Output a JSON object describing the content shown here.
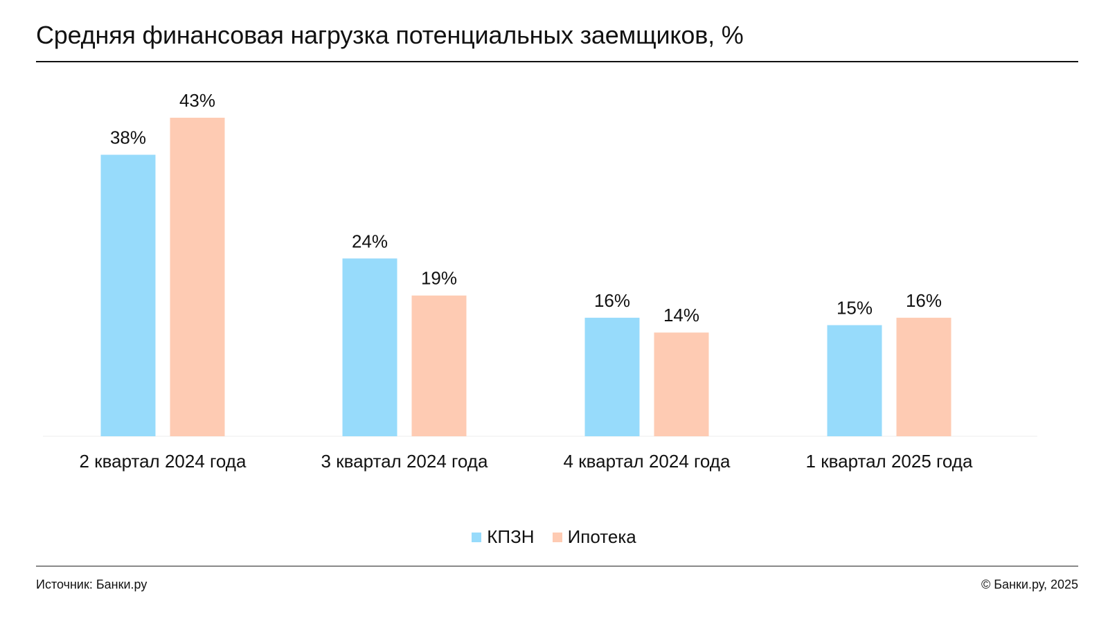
{
  "title": "Средняя финансовая нагрузка потенциальных заемщиков, %",
  "footer": {
    "source": "Источник: Банки.ру",
    "copyright": "© Банки.ру, 2025"
  },
  "colors": {
    "kpzn": "#97dbfb",
    "mortgage": "#fecbb3",
    "text": "#111111",
    "axis": "#eeeeee"
  },
  "chart_data": {
    "type": "bar",
    "title": "Средняя финансовая нагрузка потенциальных заемщиков, %",
    "categories": [
      "2 квартал 2024 года",
      "3 квартал 2024 года",
      "4 квартал 2024 года",
      "1 квартал 2025 года"
    ],
    "series": [
      {
        "name": "КПЗН",
        "values": [
          38,
          24,
          16,
          15
        ],
        "labels": [
          "38%",
          "24%",
          "16%",
          "15%"
        ],
        "color": "#97dbfb"
      },
      {
        "name": "Ипотека",
        "values": [
          43,
          19,
          14,
          16
        ],
        "labels": [
          "43%",
          "19%",
          "14%",
          "16%"
        ],
        "color": "#fecbb3"
      }
    ],
    "ylim": [
      0,
      43
    ],
    "grid": false,
    "legend": "bottom-center"
  }
}
